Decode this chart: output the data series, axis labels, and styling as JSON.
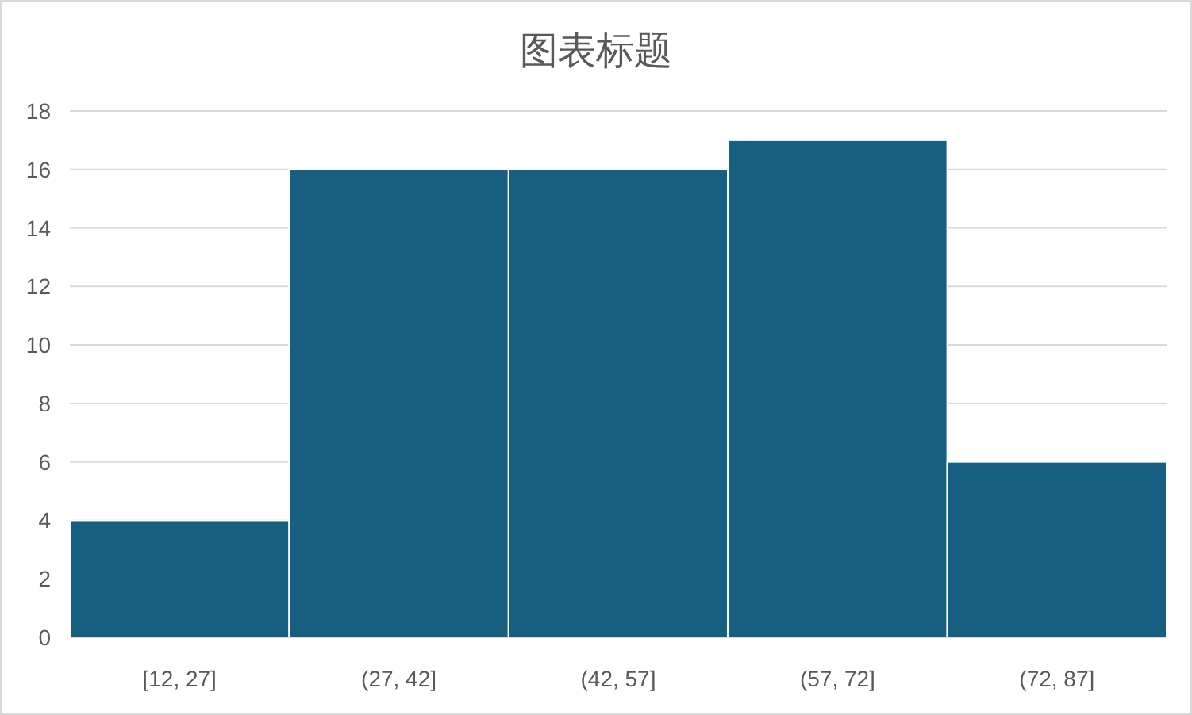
{
  "chart_data": {
    "type": "bar",
    "title": "图表标题",
    "categories": [
      "[12, 27]",
      "(27, 42]",
      "(42, 57]",
      "(57, 72]",
      "(72, 87]"
    ],
    "values": [
      4,
      16,
      16,
      17,
      6
    ],
    "color": "#175f80",
    "ylim": [
      0,
      18
    ],
    "yticks": [
      0,
      2,
      4,
      6,
      8,
      10,
      12,
      14,
      16,
      18
    ],
    "grid": "y"
  }
}
